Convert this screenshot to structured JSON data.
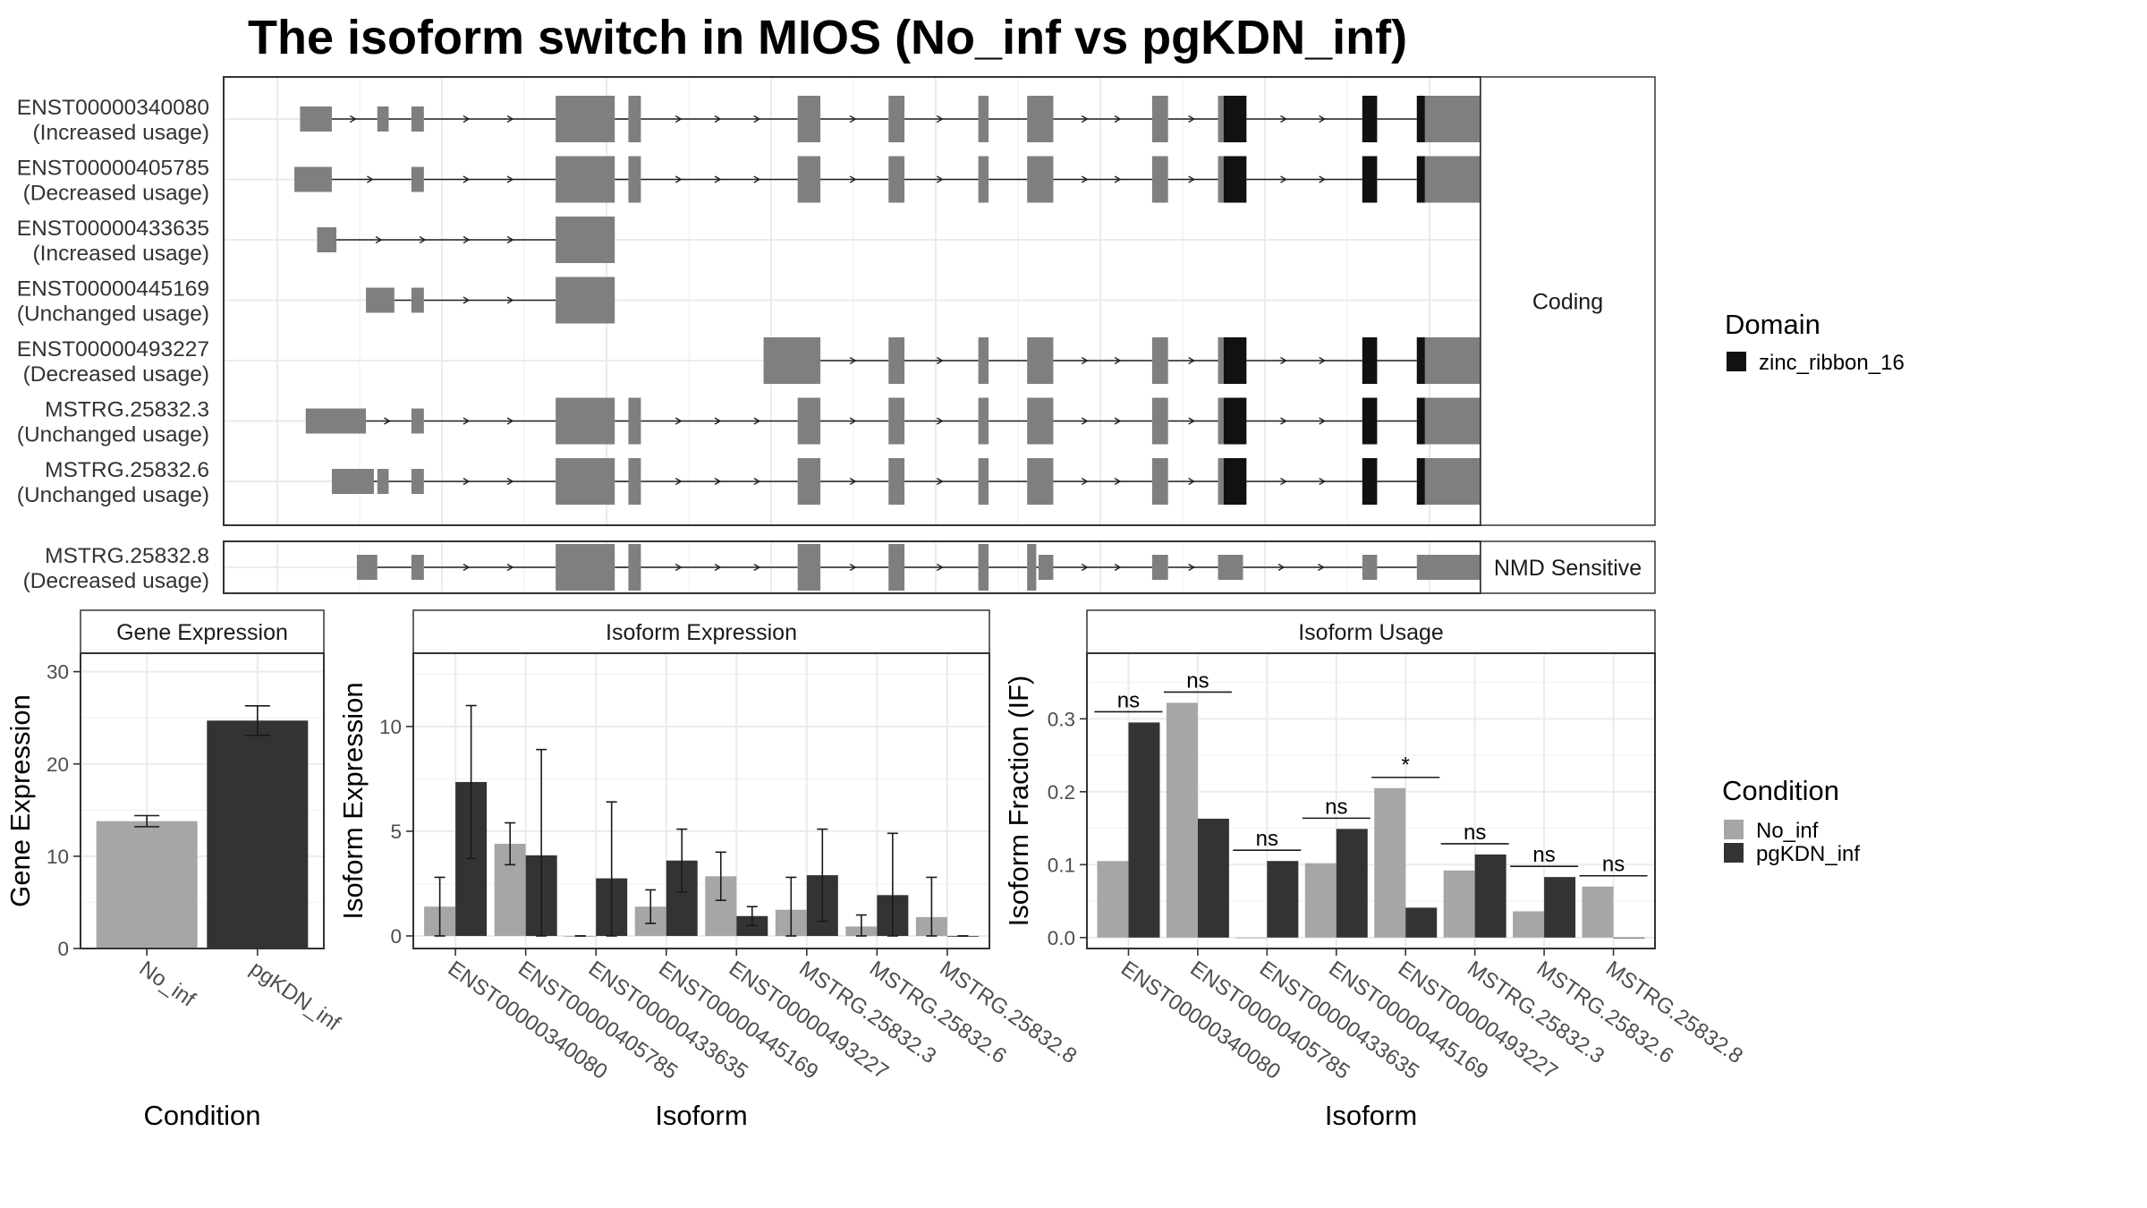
{
  "title": "The isoform switch in MIOS (No_inf vs pgKDN_inf)",
  "colors": {
    "exon": "#7f7f7f",
    "domain": "#111111",
    "no_inf": "#a6a6a6",
    "pgkdn_inf": "#333333"
  },
  "structure": {
    "x_range": [
      0,
      1000
    ],
    "facets": [
      {
        "label": "Coding",
        "transcripts": [
          {
            "name": "ENST00000340080",
            "status": "(Increased usage)",
            "exons": [
              [
                20,
                48,
                "u"
              ],
              [
                88,
                98,
                "u"
              ],
              [
                118,
                129,
                "u"
              ],
              [
                245,
                297,
                "c"
              ],
              [
                309,
                320,
                "c"
              ],
              [
                458,
                478,
                "c"
              ],
              [
                538,
                552,
                "c"
              ],
              [
                617,
                626,
                "c"
              ],
              [
                660,
                683,
                "c"
              ],
              [
                770,
                784,
                "c"
              ],
              [
                828,
                853,
                "c"
              ],
              [
                955,
                968,
                "c"
              ],
              [
                1003,
                1060,
                "c"
              ]
            ],
            "domains": [
              [
                833,
                853
              ],
              [
                955,
                968
              ],
              [
                1003,
                1010
              ]
            ]
          },
          {
            "name": "ENST00000405785",
            "status": "(Decreased usage)",
            "exons": [
              [
                15,
                48,
                "u"
              ],
              [
                118,
                129,
                "u"
              ],
              [
                245,
                297,
                "c"
              ],
              [
                309,
                320,
                "c"
              ],
              [
                458,
                478,
                "c"
              ],
              [
                538,
                552,
                "c"
              ],
              [
                617,
                626,
                "c"
              ],
              [
                660,
                683,
                "c"
              ],
              [
                770,
                784,
                "c"
              ],
              [
                828,
                853,
                "c"
              ],
              [
                955,
                968,
                "c"
              ],
              [
                1003,
                1060,
                "c"
              ]
            ],
            "domains": [
              [
                833,
                853
              ],
              [
                955,
                968
              ],
              [
                1003,
                1010
              ]
            ]
          },
          {
            "name": "ENST00000433635",
            "status": "(Increased usage)",
            "exons": [
              [
                35,
                52,
                "u"
              ],
              [
                245,
                297,
                "c"
              ]
            ],
            "domains": []
          },
          {
            "name": "ENST00000445169",
            "status": "(Unchanged usage)",
            "exons": [
              [
                78,
                103,
                "u"
              ],
              [
                118,
                129,
                "u"
              ],
              [
                245,
                297,
                "c"
              ]
            ],
            "domains": []
          },
          {
            "name": "ENST00000493227",
            "status": "(Decreased usage)",
            "exons": [
              [
                428,
                478,
                "c"
              ],
              [
                538,
                552,
                "c"
              ],
              [
                617,
                626,
                "c"
              ],
              [
                660,
                683,
                "c"
              ],
              [
                770,
                784,
                "c"
              ],
              [
                828,
                853,
                "c"
              ],
              [
                955,
                968,
                "c"
              ],
              [
                1003,
                1060,
                "c"
              ]
            ],
            "domains": [
              [
                833,
                853
              ],
              [
                955,
                968
              ],
              [
                1003,
                1010
              ]
            ]
          },
          {
            "name": "MSTRG.25832.3",
            "status": "(Unchanged usage)",
            "exons": [
              [
                25,
                78,
                "u"
              ],
              [
                118,
                129,
                "u"
              ],
              [
                245,
                297,
                "c"
              ],
              [
                309,
                320,
                "c"
              ],
              [
                458,
                478,
                "c"
              ],
              [
                538,
                552,
                "c"
              ],
              [
                617,
                626,
                "c"
              ],
              [
                660,
                683,
                "c"
              ],
              [
                770,
                784,
                "c"
              ],
              [
                828,
                853,
                "c"
              ],
              [
                955,
                968,
                "c"
              ],
              [
                1003,
                1060,
                "c"
              ]
            ],
            "domains": [
              [
                833,
                853
              ],
              [
                955,
                968
              ],
              [
                1003,
                1010
              ]
            ]
          },
          {
            "name": "MSTRG.25832.6",
            "status": "(Unchanged usage)",
            "exons": [
              [
                48,
                85,
                "u"
              ],
              [
                88,
                98,
                "u"
              ],
              [
                118,
                129,
                "u"
              ],
              [
                245,
                297,
                "c"
              ],
              [
                309,
                320,
                "c"
              ],
              [
                458,
                478,
                "c"
              ],
              [
                538,
                552,
                "c"
              ],
              [
                617,
                626,
                "c"
              ],
              [
                660,
                683,
                "c"
              ],
              [
                770,
                784,
                "c"
              ],
              [
                828,
                853,
                "c"
              ],
              [
                955,
                968,
                "c"
              ],
              [
                1003,
                1060,
                "c"
              ]
            ],
            "domains": [
              [
                833,
                853
              ],
              [
                955,
                968
              ],
              [
                1003,
                1010
              ]
            ]
          }
        ]
      },
      {
        "label": "NMD Sensitive",
        "transcripts": [
          {
            "name": "MSTRG.25832.8",
            "status": "(Decreased usage)",
            "exons": [
              [
                70,
                88,
                "u"
              ],
              [
                118,
                129,
                "u"
              ],
              [
                245,
                297,
                "c"
              ],
              [
                309,
                320,
                "c"
              ],
              [
                458,
                478,
                "c"
              ],
              [
                538,
                552,
                "c"
              ],
              [
                617,
                626,
                "c"
              ],
              [
                660,
                668,
                "c"
              ],
              [
                670,
                683,
                "u"
              ],
              [
                770,
                784,
                "u"
              ],
              [
                828,
                850,
                "u"
              ],
              [
                955,
                968,
                "u"
              ],
              [
                1003,
                1070,
                "u"
              ]
            ],
            "domains": []
          }
        ]
      }
    ],
    "legend": {
      "title": "Domain",
      "items": [
        "zinc_ribbon_16"
      ]
    }
  },
  "chart_data": [
    {
      "type": "bar",
      "title": "Gene Expression",
      "xlabel": "Condition",
      "ylabel": "Gene Expression",
      "categories": [
        "No_inf",
        "pgKDN_inf"
      ],
      "values": [
        13.8,
        24.7
      ],
      "errors": [
        [
          13.2,
          14.4
        ],
        [
          23.1,
          26.3
        ]
      ],
      "ylim": [
        0,
        32
      ],
      "yticks": [
        0,
        10,
        20,
        30
      ]
    },
    {
      "type": "bar",
      "title": "Isoform Expression",
      "xlabel": "Isoform",
      "ylabel": "Isoform Expression",
      "categories": [
        "ENST00000340080",
        "ENST00000405785",
        "ENST00000433635",
        "ENST00000445169",
        "ENST00000493227",
        "MSTRG.25832.3",
        "MSTRG.25832.6",
        "MSTRG.25832.8"
      ],
      "series": [
        {
          "name": "No_inf",
          "values": [
            1.4,
            4.4,
            0.0,
            1.4,
            2.85,
            1.25,
            0.45,
            0.9
          ],
          "errors": [
            [
              0.0,
              2.8
            ],
            [
              3.4,
              5.4
            ],
            [
              0.0,
              0.0
            ],
            [
              0.6,
              2.2
            ],
            [
              1.7,
              4.0
            ],
            [
              0.0,
              2.8
            ],
            [
              0.0,
              1.0
            ],
            [
              0.0,
              2.8
            ]
          ]
        },
        {
          "name": "pgKDN_inf",
          "values": [
            7.35,
            3.85,
            2.75,
            3.6,
            0.95,
            2.9,
            1.95,
            0.0
          ],
          "errors": [
            [
              3.7,
              11.0
            ],
            [
              0.0,
              8.9
            ],
            [
              0.0,
              6.4
            ],
            [
              2.1,
              5.1
            ],
            [
              0.5,
              1.4
            ],
            [
              0.7,
              5.1
            ],
            [
              0.0,
              4.9
            ],
            [
              0.0,
              0.0
            ]
          ]
        }
      ],
      "ylim": [
        -0.6,
        13.5
      ],
      "yticks": [
        0,
        5,
        10
      ]
    },
    {
      "type": "bar",
      "title": "Isoform Usage",
      "xlabel": "Isoform",
      "ylabel": "Isoform Fraction (IF)",
      "categories": [
        "ENST00000340080",
        "ENST00000405785",
        "ENST00000433635",
        "ENST00000445169",
        "ENST00000493227",
        "MSTRG.25832.3",
        "MSTRG.25832.6",
        "MSTRG.25832.8"
      ],
      "series": [
        {
          "name": "No_inf",
          "values": [
            0.105,
            0.322,
            0.0,
            0.102,
            0.205,
            0.092,
            0.036,
            0.07
          ]
        },
        {
          "name": "pgKDN_inf",
          "values": [
            0.295,
            0.163,
            0.105,
            0.149,
            0.041,
            0.114,
            0.083,
            0.0
          ]
        }
      ],
      "significance": [
        "ns",
        "ns",
        "ns",
        "ns",
        "*",
        "ns",
        "ns",
        "ns"
      ],
      "ylim": [
        -0.015,
        0.39
      ],
      "yticks": [
        0.0,
        0.1,
        0.2,
        0.3
      ]
    }
  ],
  "bar_legend": {
    "title": "Condition",
    "items": [
      "No_inf",
      "pgKDN_inf"
    ]
  }
}
